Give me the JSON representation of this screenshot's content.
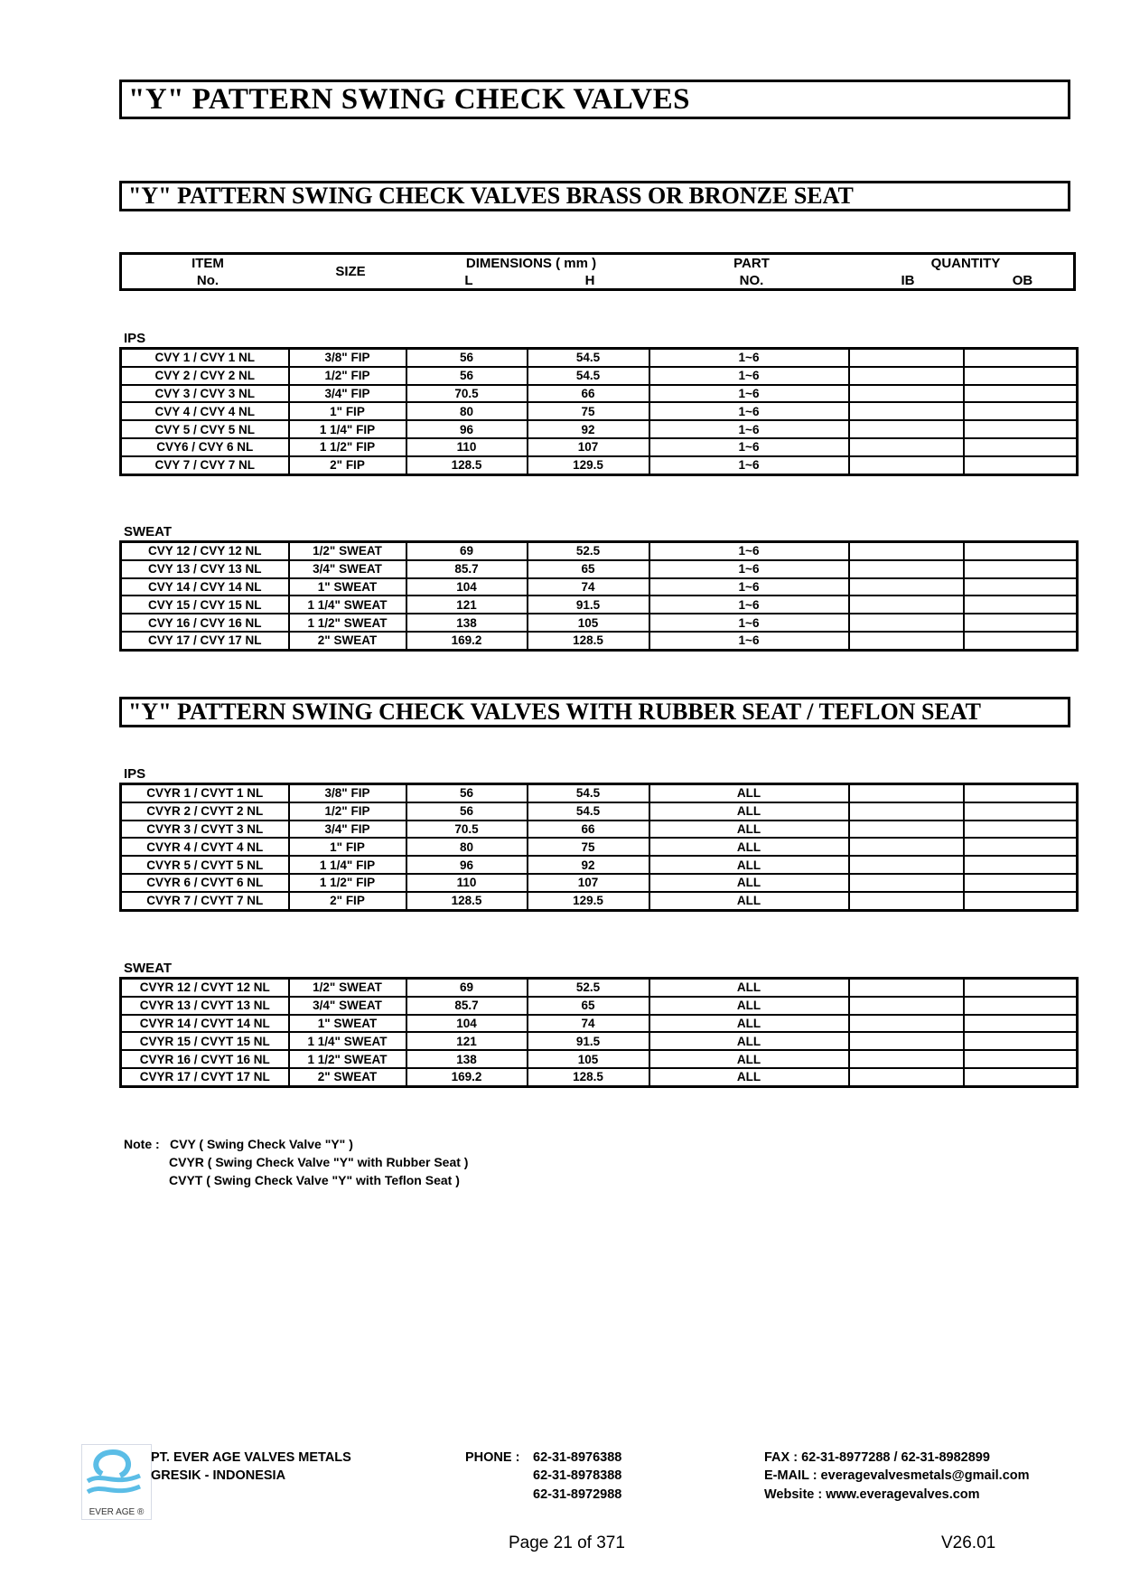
{
  "title": "\"Y\" PATTERN SWING CHECK  VALVES",
  "section1_title": "\"Y\" PATTERN SWING CHECK VALVES BRASS OR BRONZE SEAT",
  "section2_title": "\"Y\" PATTERN SWING CHECK VALVES WITH RUBBER SEAT  /  TEFLON SEAT",
  "header": {
    "item": "ITEM",
    "no": "No.",
    "size": "SIZE",
    "dimensions": "DIMENSIONS  ( mm )",
    "l": "L",
    "h": "H",
    "part": "PART",
    "part_no": "NO.",
    "quantity": "QUANTITY",
    "ib": "IB",
    "ob": "OB"
  },
  "tables": [
    {
      "label": "IPS",
      "rows": [
        [
          "CVY 1 / CVY 1 NL",
          "3/8\" FIP",
          "56",
          "54.5",
          "1~6",
          "",
          ""
        ],
        [
          "CVY 2 / CVY 2 NL",
          "1/2\" FIP",
          "56",
          "54.5",
          "1~6",
          "",
          ""
        ],
        [
          "CVY 3 / CVY 3 NL",
          "3/4\" FIP",
          "70.5",
          "66",
          "1~6",
          "",
          ""
        ],
        [
          "CVY 4 / CVY 4 NL",
          "1\" FIP",
          "80",
          "75",
          "1~6",
          "",
          ""
        ],
        [
          "CVY 5 / CVY 5 NL",
          "1 1/4\" FIP",
          "96",
          "92",
          "1~6",
          "",
          ""
        ],
        [
          "CVY6 / CVY 6 NL",
          "1 1/2\" FIP",
          "110",
          "107",
          "1~6",
          "",
          ""
        ],
        [
          "CVY 7 / CVY 7 NL",
          "2\" FIP",
          "128.5",
          "129.5",
          "1~6",
          "",
          ""
        ]
      ]
    },
    {
      "label": "SWEAT",
      "rows": [
        [
          "CVY 12 / CVY 12 NL",
          "1/2\" SWEAT",
          "69",
          "52.5",
          "1~6",
          "",
          ""
        ],
        [
          "CVY 13 / CVY 13 NL",
          "3/4\" SWEAT",
          "85.7",
          "65",
          "1~6",
          "",
          ""
        ],
        [
          "CVY 14 / CVY 14 NL",
          "1\" SWEAT",
          "104",
          "74",
          "1~6",
          "",
          ""
        ],
        [
          "CVY 15 / CVY 15 NL",
          "1 1/4\" SWEAT",
          "121",
          "91.5",
          "1~6",
          "",
          ""
        ],
        [
          "CVY 16 / CVY 16 NL",
          "1 1/2\" SWEAT",
          "138",
          "105",
          "1~6",
          "",
          ""
        ],
        [
          "CVY 17 / CVY 17 NL",
          "2\" SWEAT",
          "169.2",
          "128.5",
          "1~6",
          "",
          ""
        ]
      ]
    },
    {
      "label": "IPS",
      "rows": [
        [
          "CVYR 1 / CVYT 1 NL",
          "3/8\" FIP",
          "56",
          "54.5",
          "ALL",
          "",
          ""
        ],
        [
          "CVYR 2 / CVYT 2 NL",
          "1/2\" FIP",
          "56",
          "54.5",
          "ALL",
          "",
          ""
        ],
        [
          "CVYR 3 / CVYT 3 NL",
          "3/4\" FIP",
          "70.5",
          "66",
          "ALL",
          "",
          ""
        ],
        [
          "CVYR 4 / CVYT 4 NL",
          "1\" FIP",
          "80",
          "75",
          "ALL",
          "",
          ""
        ],
        [
          "CVYR 5 / CVYT 5 NL",
          "1 1/4\" FIP",
          "96",
          "92",
          "ALL",
          "",
          ""
        ],
        [
          "CVYR 6 / CVYT 6 NL",
          "1 1/2\" FIP",
          "110",
          "107",
          "ALL",
          "",
          ""
        ],
        [
          "CVYR 7 / CVYT 7 NL",
          "2\" FIP",
          "128.5",
          "129.5",
          "ALL",
          "",
          ""
        ]
      ]
    },
    {
      "label": "SWEAT",
      "rows": [
        [
          "CVYR 12 / CVYT 12 NL",
          "1/2\" SWEAT",
          "69",
          "52.5",
          "ALL",
          "",
          ""
        ],
        [
          "CVYR 13 / CVYT 13 NL",
          "3/4\" SWEAT",
          "85.7",
          "65",
          "ALL",
          "",
          ""
        ],
        [
          "CVYR 14 / CVYT 14 NL",
          "1\" SWEAT",
          "104",
          "74",
          "ALL",
          "",
          ""
        ],
        [
          "CVYR 15 / CVYT 15 NL",
          "1 1/4\" SWEAT",
          "121",
          "91.5",
          "ALL",
          "",
          ""
        ],
        [
          "CVYR 16 / CVYT 16 NL",
          "1 1/2\" SWEAT",
          "138",
          "105",
          "ALL",
          "",
          ""
        ],
        [
          "CVYR 17 / CVYT 17 NL",
          "2\" SWEAT",
          "169.2",
          "128.5",
          "ALL",
          "",
          ""
        ]
      ]
    }
  ],
  "notes": {
    "prefix": "Note :",
    "lines": [
      "CVY ( Swing Check Valve \"Y\" )",
      "CVYR ( Swing Check Valve \"Y\" with Rubber Seat )",
      "CVYT ( Swing Check Valve \"Y\" with Teflon Seat )"
    ]
  },
  "footer": {
    "logo_text": "EVER AGE ®",
    "company": "PT. EVER AGE VALVES METALS",
    "location": "GRESIK - INDONESIA",
    "phone_label": "PHONE :",
    "phones": [
      "62-31-8976388",
      "62-31-8978388",
      "62-31-8972988"
    ],
    "fax": "FAX  : 62-31-8977288 / 62-31-8982899",
    "email": "E-MAIL  : everagevalvesmetals@gmail.com",
    "website": "Website  : www.everagevalves.com",
    "page": "Page 21 of 371",
    "version": "V26.01"
  },
  "colors": {
    "logo_blue": "#5bbde6"
  }
}
